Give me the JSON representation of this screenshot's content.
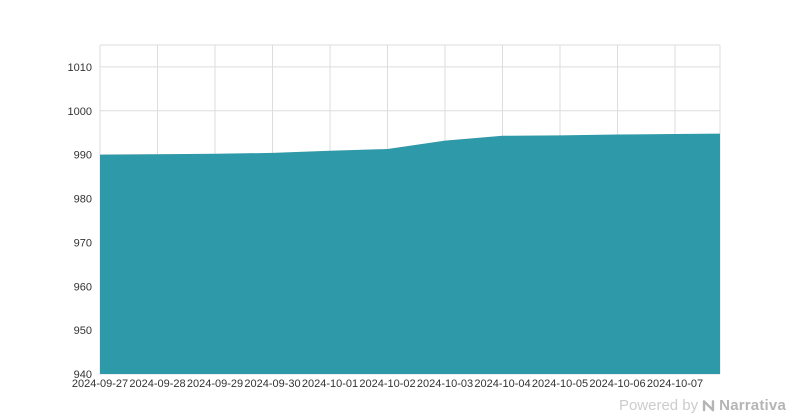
{
  "chart_data": {
    "type": "area",
    "title": "",
    "xlabel": "",
    "ylabel": "",
    "categories": [
      "2024-09-27",
      "2024-09-28",
      "2024-09-29",
      "2024-09-30",
      "2024-10-01",
      "2024-10-02",
      "2024-10-03",
      "2024-10-04",
      "2024-10-05",
      "2024-10-06",
      "2024-10-07"
    ],
    "values": [
      990.0,
      990.1,
      990.2,
      990.4,
      990.9,
      991.3,
      993.2,
      994.3,
      994.4,
      994.6,
      994.7
    ],
    "right_edge_value": 994.8,
    "ylim": [
      940,
      1015
    ],
    "yticks": [
      940,
      950,
      960,
      970,
      980,
      990,
      1000,
      1010
    ],
    "grid": true,
    "legend": "none",
    "area_color": "#2e99a8",
    "grid_color": "#dddddd",
    "tick_color": "#333333"
  },
  "watermark": {
    "prefix": "Powered by ",
    "brand": "Narrativa"
  }
}
